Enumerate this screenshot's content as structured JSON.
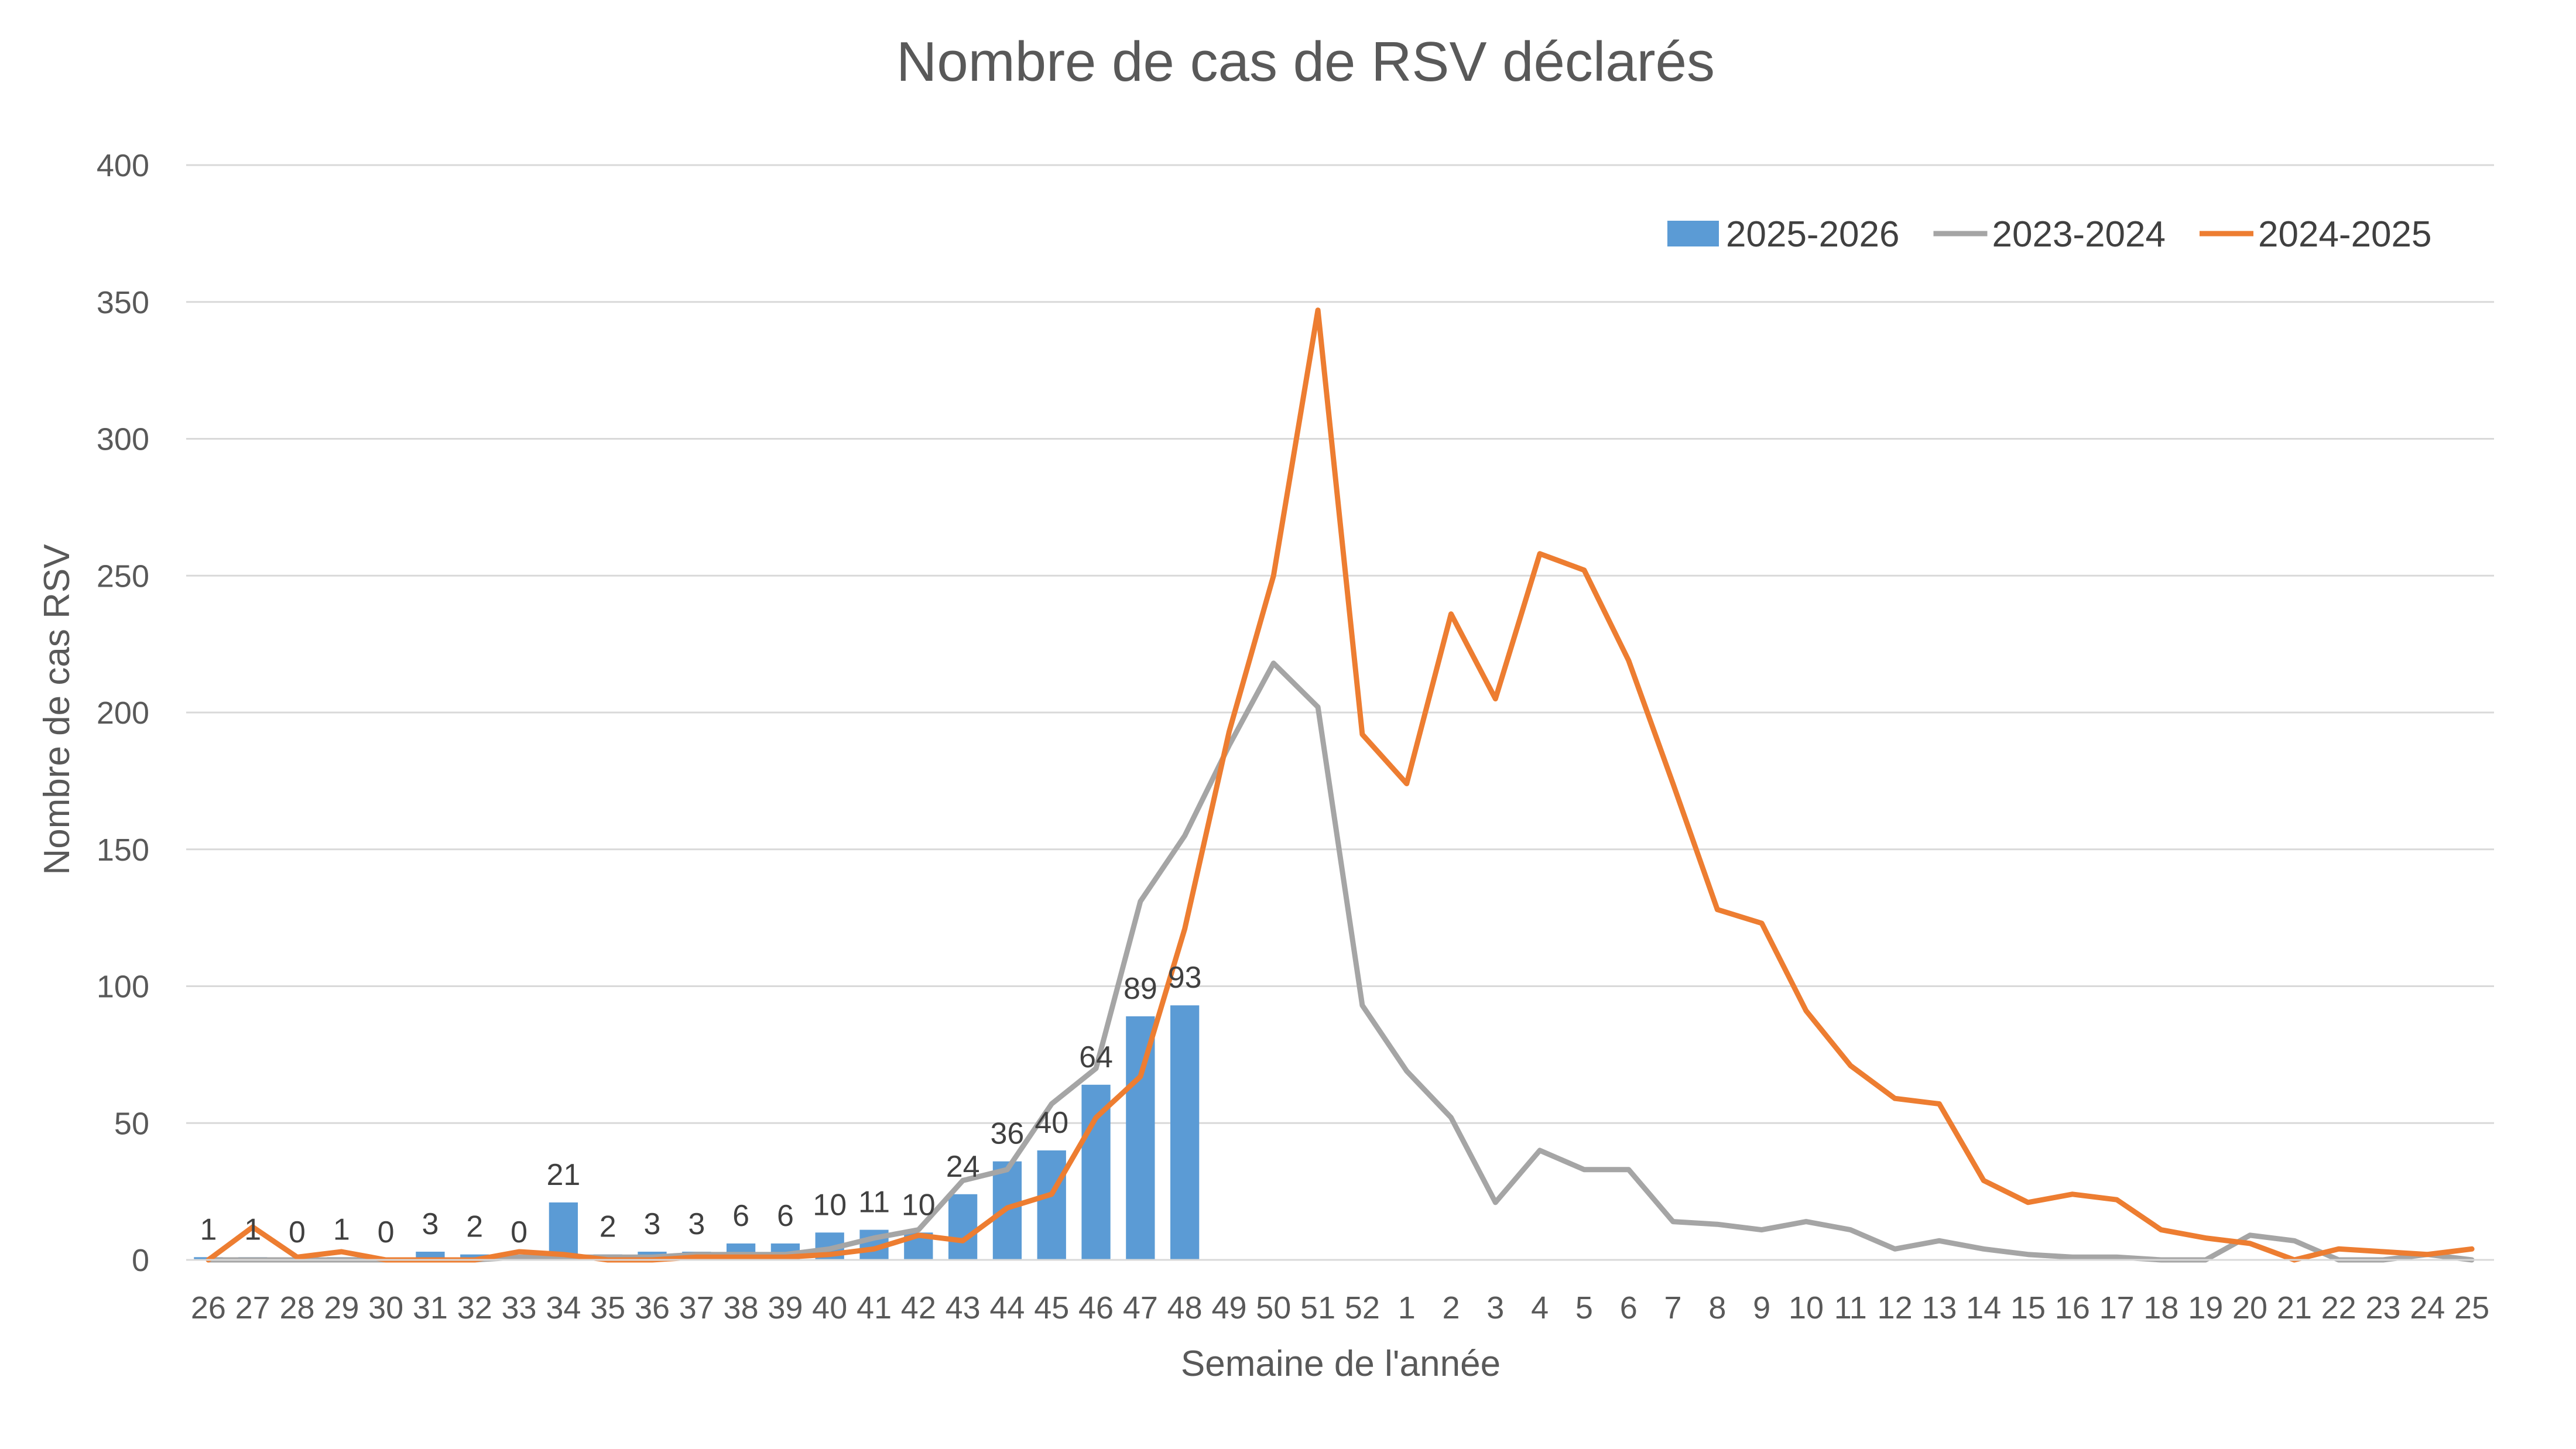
{
  "chart_data": {
    "type": "bar",
    "title": "Nombre de cas de RSV déclarés",
    "xlabel": "Semaine de l'année",
    "ylabel": "Nombre de cas RSV",
    "ylim": [
      0,
      400
    ],
    "yticks": [
      0,
      50,
      100,
      150,
      200,
      250,
      300,
      350,
      400
    ],
    "grid": true,
    "legend_position": "top-right",
    "categories": [
      "26",
      "27",
      "28",
      "29",
      "30",
      "31",
      "32",
      "33",
      "34",
      "35",
      "36",
      "37",
      "38",
      "39",
      "40",
      "41",
      "42",
      "43",
      "44",
      "45",
      "46",
      "47",
      "48",
      "49",
      "50",
      "51",
      "52",
      "1",
      "2",
      "3",
      "4",
      "5",
      "6",
      "7",
      "8",
      "9",
      "10",
      "11",
      "12",
      "13",
      "14",
      "15",
      "16",
      "17",
      "18",
      "19",
      "20",
      "21",
      "22",
      "23",
      "24",
      "25"
    ],
    "series": [
      {
        "name": "2025-2026",
        "type": "bar",
        "color": "#5b9bd5",
        "data_labels": true,
        "values": [
          1,
          1,
          0,
          1,
          0,
          3,
          2,
          0,
          21,
          2,
          3,
          3,
          6,
          6,
          10,
          11,
          10,
          24,
          36,
          40,
          64,
          89,
          93,
          null,
          null,
          null,
          null,
          null,
          null,
          null,
          null,
          null,
          null,
          null,
          null,
          null,
          null,
          null,
          null,
          null,
          null,
          null,
          null,
          null,
          null,
          null,
          null,
          null,
          null,
          null,
          null,
          null
        ]
      },
      {
        "name": "2023-2024",
        "type": "line",
        "color": "#a5a5a5",
        "values": [
          0,
          0,
          0,
          0,
          0,
          0,
          0,
          1,
          1,
          1,
          1,
          2,
          2,
          2,
          4,
          8,
          11,
          29,
          33,
          57,
          70,
          131,
          155,
          188,
          218,
          202,
          93,
          69,
          52,
          21,
          40,
          33,
          33,
          14,
          13,
          11,
          14,
          11,
          4,
          7,
          4,
          2,
          1,
          1,
          0,
          0,
          9,
          7,
          0,
          0,
          2,
          0
        ]
      },
      {
        "name": "2024-2025",
        "type": "line",
        "color": "#ed7d31",
        "values": [
          0,
          12,
          1,
          3,
          0,
          0,
          0,
          3,
          2,
          0,
          0,
          1,
          1,
          1,
          2,
          4,
          9,
          7,
          19,
          24,
          52,
          67,
          121,
          193,
          250,
          347,
          192,
          174,
          236,
          205,
          258,
          252,
          219,
          174,
          128,
          123,
          91,
          71,
          59,
          57,
          29,
          21,
          24,
          22,
          11,
          8,
          6,
          0,
          4,
          3,
          2,
          4
        ]
      }
    ]
  }
}
